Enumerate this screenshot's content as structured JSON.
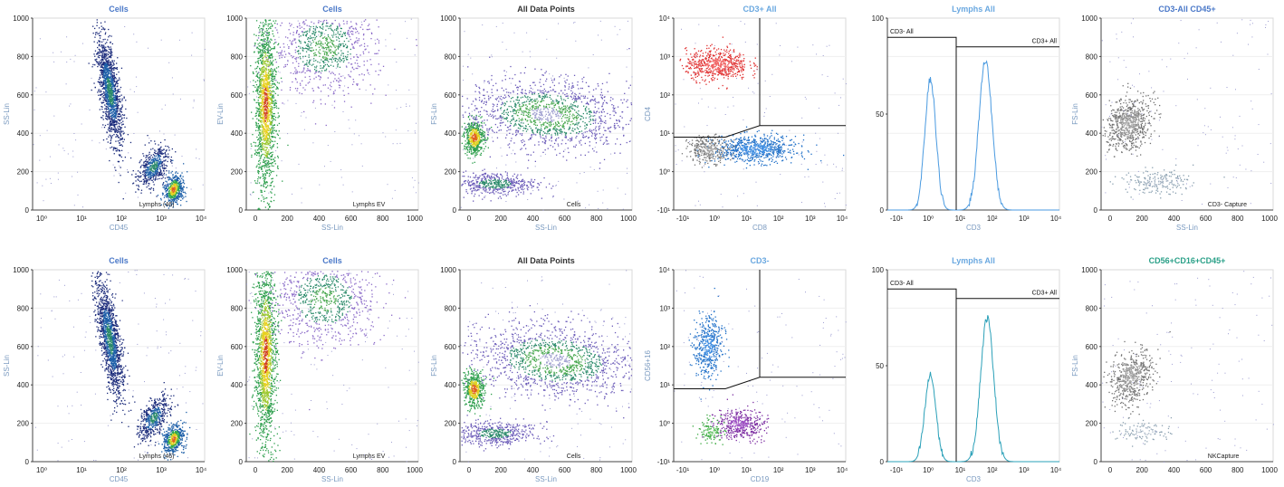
{
  "chart_data": [
    {
      "type": "scatter",
      "title": "Cells",
      "title_color": "#4a78c8",
      "xlabel": "CD45",
      "ylabel": "SS-Lin",
      "xscale": "log",
      "ylim": [
        0,
        1000
      ],
      "yticks": [
        "0",
        "200",
        "400",
        "600",
        "800",
        "1000"
      ],
      "xticks": [
        "10⁰",
        "10¹",
        "10²",
        "10³",
        "10⁴"
      ],
      "clusters": [
        {
          "x": 1.7,
          "y": 620,
          "sx": 0.12,
          "sy": 140,
          "rot": -0.15,
          "n": 1400,
          "colors": [
            "#1a2a7a",
            "#1d5fa8",
            "#2b8a6a"
          ]
        },
        {
          "x": 2.8,
          "y": 230,
          "sx": 0.15,
          "sy": 60,
          "rot": 0.5,
          "n": 500,
          "colors": [
            "#1a2a7a",
            "#1d5fa8",
            "#2b8a6a"
          ]
        },
        {
          "x": 3.3,
          "y": 110,
          "sx": 0.12,
          "sy": 40,
          "rot": 0.3,
          "n": 500,
          "colors": [
            "#1d5fa8",
            "#31a84e",
            "#e0d020",
            "#e06020"
          ]
        }
      ],
      "gate_label": "Lymphs (46)"
    },
    {
      "type": "scatter",
      "title": "Cells",
      "title_color": "#4a78c8",
      "xlabel": "SS-Lin",
      "ylabel": "EV-Lin",
      "xlim": [
        0,
        1000
      ],
      "ylim": [
        0,
        1000
      ],
      "yticks": [
        "0",
        "200",
        "400",
        "600",
        "800",
        "1000"
      ],
      "xticks": [
        "0",
        "200",
        "400",
        "600",
        "800",
        "1000"
      ],
      "clusters": [
        {
          "x": 110,
          "y": 550,
          "sx": 30,
          "sy": 230,
          "rot": 0,
          "n": 1600,
          "colors": [
            "#2a9d4a",
            "#9cc830",
            "#e8d020",
            "#d04020"
          ]
        },
        {
          "x": 450,
          "y": 850,
          "sx": 150,
          "sy": 120,
          "rot": 0,
          "n": 900,
          "colors": [
            "#8a6ac8",
            "#2b8a6a",
            "#4aa850"
          ]
        }
      ],
      "gate_label": "Lymphs EV"
    },
    {
      "type": "scatter",
      "title": "All Data Points",
      "title_color": "#333333",
      "xlabel": "SS-Lin",
      "ylabel": "FS-Lin",
      "xlim": [
        0,
        1000
      ],
      "ylim": [
        0,
        1000
      ],
      "yticks": [
        "0",
        "200",
        "400",
        "600",
        "800",
        "1000"
      ],
      "xticks": [
        "0",
        "200",
        "400",
        "600",
        "800",
        "1000"
      ],
      "clusters": [
        {
          "x": 80,
          "y": 380,
          "sx": 30,
          "sy": 45,
          "rot": 0,
          "n": 500,
          "colors": [
            "#2a9d4a",
            "#e0d020",
            "#e06020"
          ]
        },
        {
          "x": 500,
          "y": 500,
          "sx": 230,
          "sy": 90,
          "rot": 0.1,
          "n": 1400,
          "colors": [
            "#6a5ab8",
            "#2b8a6a",
            "#4aa850",
            "#a0a0d0"
          ]
        },
        {
          "x": 200,
          "y": 140,
          "sx": 120,
          "sy": 30,
          "rot": 0,
          "n": 500,
          "colors": [
            "#6a5ab8",
            "#2b8a6a"
          ]
        }
      ],
      "gate_label": "Cells"
    },
    {
      "type": "scatter",
      "title": "CD3+ All",
      "title_color": "#6aa8e0",
      "xlabel": "CD8",
      "ylabel": "CD4",
      "xscale": "log",
      "yscale": "log",
      "yticks": [
        "-10¹",
        "10⁰",
        "10¹",
        "10²",
        "10³",
        "10⁴"
      ],
      "xticks": [
        "-10¹",
        "10⁰",
        "10¹",
        "10²",
        "10³",
        "10⁴"
      ],
      "clusters": [
        {
          "x": 0.25,
          "y": 0.76,
          "sx": 0.09,
          "sy": 0.04,
          "rot": 0,
          "n": 600,
          "colors": [
            "#e03030",
            "#f06060"
          ]
        },
        {
          "x": 0.47,
          "y": 0.32,
          "sx": 0.12,
          "sy": 0.035,
          "rot": 0,
          "n": 700,
          "colors": [
            "#1e6fc8",
            "#3a8ae0"
          ]
        },
        {
          "x": 0.2,
          "y": 0.32,
          "sx": 0.06,
          "sy": 0.035,
          "rot": 0,
          "n": 300,
          "colors": [
            "#777777",
            "#999999"
          ]
        }
      ],
      "gate_label": ""
    },
    {
      "type": "line",
      "title": "Lymphs All",
      "title_color": "#6aa8e0",
      "xlabel": "CD3",
      "ylabel": "",
      "xscale": "log",
      "ylim": [
        0,
        100
      ],
      "yticks": [
        "0",
        "50",
        "100"
      ],
      "xticks": [
        "-10¹",
        "10⁰",
        "10¹",
        "10²",
        "10³",
        "10⁴"
      ],
      "series": [
        {
          "color": "#4a9ae0",
          "peaks": [
            {
              "x": 0.25,
              "h": 68,
              "w": 0.032
            },
            {
              "x": 0.57,
              "h": 78,
              "w": 0.038
            }
          ]
        }
      ],
      "gates": [
        {
          "label": "CD3- All"
        },
        {
          "label": "CD3+ All"
        }
      ]
    },
    {
      "type": "scatter",
      "title": "CD3-All CD45+",
      "title_color": "#4a78c8",
      "xlabel": "SS-Lin",
      "ylabel": "FS-Lin",
      "xlim": [
        0,
        1000
      ],
      "ylim": [
        0,
        1000
      ],
      "yticks": [
        "0",
        "200",
        "400",
        "600",
        "800",
        "1000"
      ],
      "xticks": [
        "0",
        "200",
        "400",
        "600",
        "800",
        "1000"
      ],
      "clusters": [
        {
          "x": 160,
          "y": 450,
          "sx": 60,
          "sy": 70,
          "rot": 0.4,
          "n": 700,
          "colors": [
            "#707070",
            "#909090",
            "#a0a0a0"
          ]
        },
        {
          "x": 330,
          "y": 150,
          "sx": 100,
          "sy": 30,
          "rot": 0,
          "n": 200,
          "colors": [
            "#8aa0b0",
            "#a0b0c0"
          ]
        }
      ],
      "gate_label": "CD3- Capture"
    },
    {
      "type": "scatter",
      "title": "Cells",
      "title_color": "#4a78c8",
      "xlabel": "CD45",
      "ylabel": "SS-Lin",
      "xscale": "log",
      "ylim": [
        0,
        1000
      ],
      "yticks": [
        "0",
        "200",
        "400",
        "600",
        "800",
        "1000"
      ],
      "xticks": [
        "10⁰",
        "10¹",
        "10²",
        "10³",
        "10⁴"
      ],
      "clusters": [
        {
          "x": 1.7,
          "y": 640,
          "sx": 0.12,
          "sy": 150,
          "rot": -0.15,
          "n": 1400,
          "colors": [
            "#1a2a7a",
            "#1d5fa8",
            "#2b8a6a"
          ]
        },
        {
          "x": 2.8,
          "y": 230,
          "sx": 0.15,
          "sy": 60,
          "rot": 0.5,
          "n": 500,
          "colors": [
            "#1a2a7a",
            "#1d5fa8",
            "#2b8a6a"
          ]
        },
        {
          "x": 3.3,
          "y": 120,
          "sx": 0.12,
          "sy": 40,
          "rot": 0.3,
          "n": 500,
          "colors": [
            "#1d5fa8",
            "#31a84e",
            "#e0d020",
            "#e06020"
          ]
        }
      ],
      "gate_label": "Lymphs (46)"
    },
    {
      "type": "scatter",
      "title": "Cells",
      "title_color": "#4a78c8",
      "xlabel": "SS-Lin",
      "ylabel": "EV-Lin",
      "xlim": [
        0,
        1000
      ],
      "ylim": [
        0,
        1000
      ],
      "yticks": [
        "0",
        "200",
        "400",
        "600",
        "800",
        "1000"
      ],
      "xticks": [
        "0",
        "200",
        "400",
        "600",
        "800",
        "1000"
      ],
      "clusters": [
        {
          "x": 110,
          "y": 560,
          "sx": 30,
          "sy": 240,
          "rot": 0,
          "n": 1600,
          "colors": [
            "#2a9d4a",
            "#9cc830",
            "#e8d020",
            "#d04020"
          ]
        },
        {
          "x": 450,
          "y": 850,
          "sx": 150,
          "sy": 120,
          "rot": 0,
          "n": 900,
          "colors": [
            "#8a6ac8",
            "#2b8a6a",
            "#4aa850"
          ]
        }
      ],
      "gate_label": "Lymphs EV"
    },
    {
      "type": "scatter",
      "title": "All Data Points",
      "title_color": "#333333",
      "xlabel": "SS-Lin",
      "ylabel": "FS-Lin",
      "xlim": [
        0,
        1000
      ],
      "ylim": [
        0,
        1000
      ],
      "yticks": [
        "0",
        "200",
        "400",
        "600",
        "800",
        "1000"
      ],
      "xticks": [
        "0",
        "200",
        "400",
        "600",
        "800",
        "1000"
      ],
      "clusters": [
        {
          "x": 80,
          "y": 380,
          "sx": 30,
          "sy": 45,
          "rot": 0,
          "n": 500,
          "colors": [
            "#2a9d4a",
            "#e0d020",
            "#e06020"
          ]
        },
        {
          "x": 550,
          "y": 530,
          "sx": 230,
          "sy": 90,
          "rot": 0.1,
          "n": 1400,
          "colors": [
            "#6a5ab8",
            "#2b8a6a",
            "#4aa850",
            "#a0a0d0"
          ]
        },
        {
          "x": 200,
          "y": 150,
          "sx": 120,
          "sy": 30,
          "rot": 0,
          "n": 500,
          "colors": [
            "#6a5ab8",
            "#2b8a6a"
          ]
        }
      ],
      "gate_label": "Cells"
    },
    {
      "type": "scatter",
      "title": "CD3-",
      "title_color": "#6aa8e0",
      "xlabel": "CD19",
      "ylabel": "CD56+16",
      "xscale": "log",
      "yscale": "log",
      "yticks": [
        "-10¹",
        "10⁰",
        "10¹",
        "10²",
        "10³",
        "10⁴"
      ],
      "xticks": [
        "-10¹",
        "10⁰",
        "10¹",
        "10²",
        "10³",
        "10⁴"
      ],
      "clusters": [
        {
          "x": 0.2,
          "y": 0.6,
          "sx": 0.04,
          "sy": 0.08,
          "rot": 0,
          "n": 450,
          "colors": [
            "#1e6fc8",
            "#3a8ae0"
          ]
        },
        {
          "x": 0.38,
          "y": 0.2,
          "sx": 0.07,
          "sy": 0.04,
          "rot": 0,
          "n": 400,
          "colors": [
            "#7a2aa0",
            "#9a4ac0"
          ]
        },
        {
          "x": 0.22,
          "y": 0.16,
          "sx": 0.04,
          "sy": 0.03,
          "rot": 0,
          "n": 120,
          "colors": [
            "#3aa840",
            "#60c060"
          ]
        }
      ],
      "gate_label": ""
    },
    {
      "type": "line",
      "title": "Lymphs All",
      "title_color": "#6aa8e0",
      "xlabel": "CD3",
      "ylabel": "",
      "xscale": "log",
      "ylim": [
        0,
        100
      ],
      "yticks": [
        "0",
        "50",
        "100"
      ],
      "xticks": [
        "-10¹",
        "10⁰",
        "10¹",
        "10²",
        "10³",
        "10⁴"
      ],
      "series": [
        {
          "color": "#2aa0b8",
          "peaks": [
            {
              "x": 0.25,
              "h": 45,
              "w": 0.032
            },
            {
              "x": 0.58,
              "h": 75,
              "w": 0.038
            }
          ]
        }
      ],
      "gates": [
        {
          "label": "CD3- All"
        },
        {
          "label": "CD3+ All"
        }
      ]
    },
    {
      "type": "scatter",
      "title": "CD56+CD16+CD45+",
      "title_color": "#2aa088",
      "xlabel": "",
      "ylabel": "FS-Lin",
      "xlim": [
        0,
        1000
      ],
      "ylim": [
        0,
        1000
      ],
      "yticks": [
        "0",
        "200",
        "400",
        "600",
        "800",
        "1000"
      ],
      "xticks": [
        "0",
        "200",
        "400",
        "600",
        "800",
        "1000"
      ],
      "clusters": [
        {
          "x": 170,
          "y": 440,
          "sx": 55,
          "sy": 70,
          "rot": 0.4,
          "n": 550,
          "colors": [
            "#707070",
            "#909090",
            "#a0a0a0"
          ]
        },
        {
          "x": 250,
          "y": 160,
          "sx": 80,
          "sy": 30,
          "rot": 0,
          "n": 100,
          "colors": [
            "#8aa0b0",
            "#a0b0c0"
          ]
        }
      ],
      "gate_label": "NKCapture"
    }
  ]
}
